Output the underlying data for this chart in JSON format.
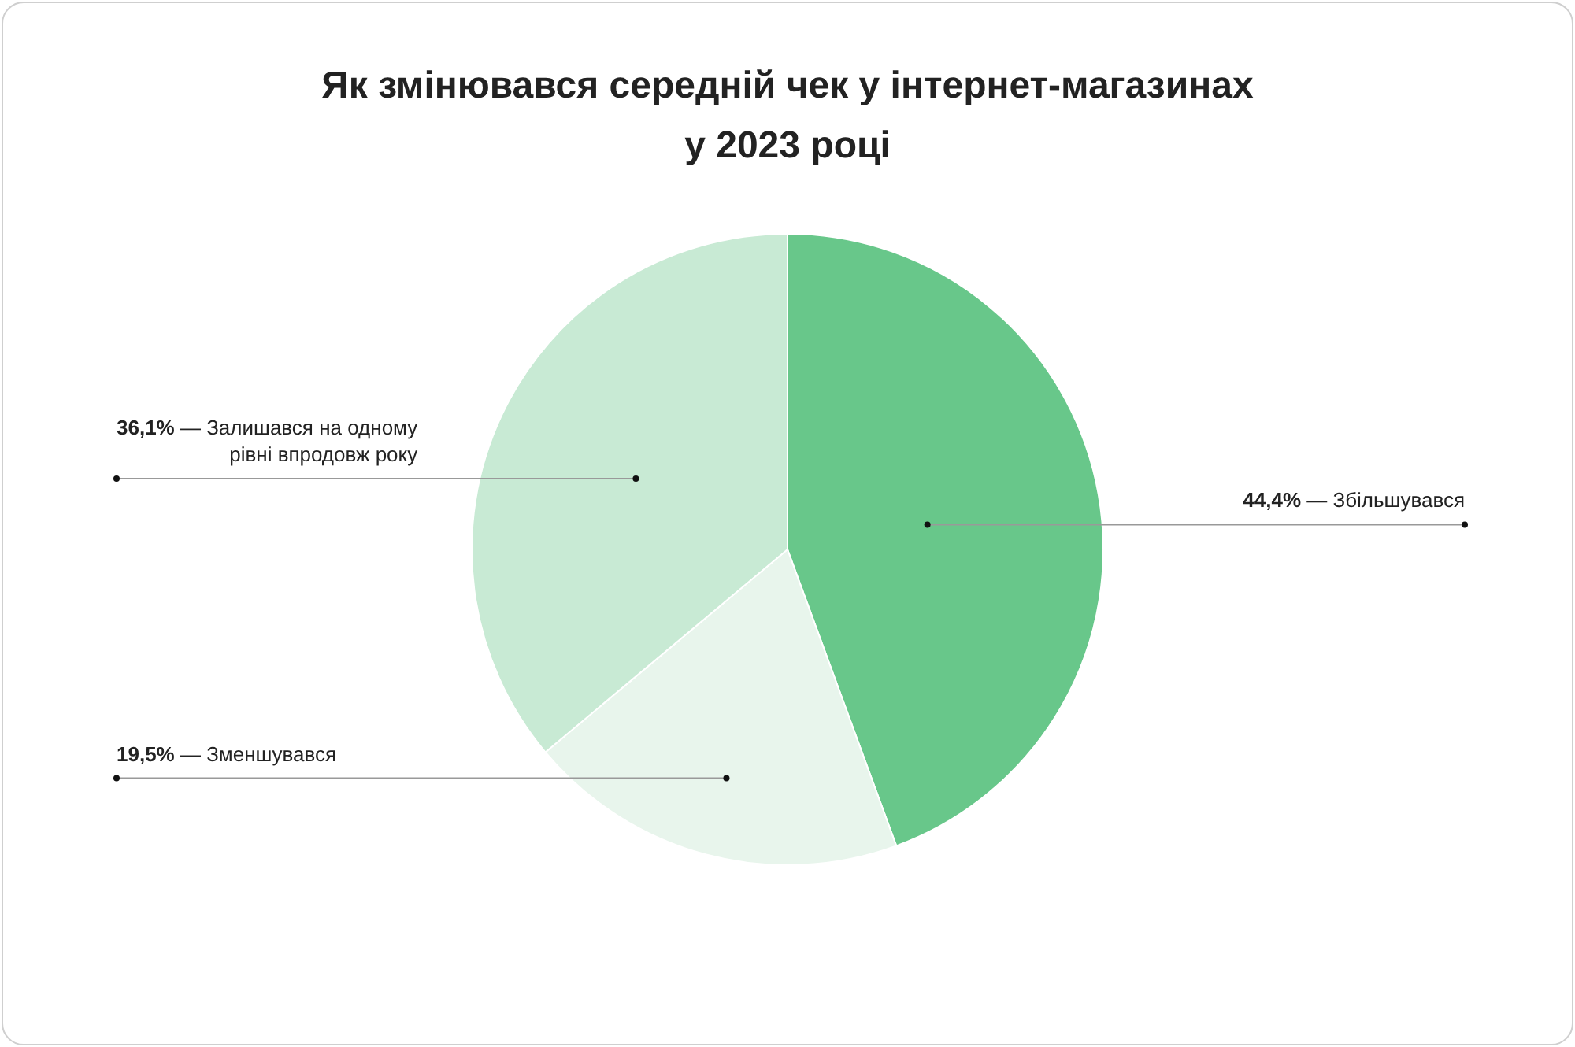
{
  "chart_data": {
    "type": "pie",
    "title": "Як змінювався середній чек у інтернет-магазинах\nу 2023 році",
    "categories": [
      "— Збільшувався",
      "— Зменшувався",
      "— Залишався на одному рівні впродовж року"
    ],
    "values": [
      44.4,
      19.5,
      36.1
    ],
    "value_labels": [
      "44,4%",
      "19,5%",
      "36,1%"
    ],
    "colors": [
      "#68c78a",
      "#e8f5ec",
      "#c8ead4"
    ],
    "legend": false
  }
}
